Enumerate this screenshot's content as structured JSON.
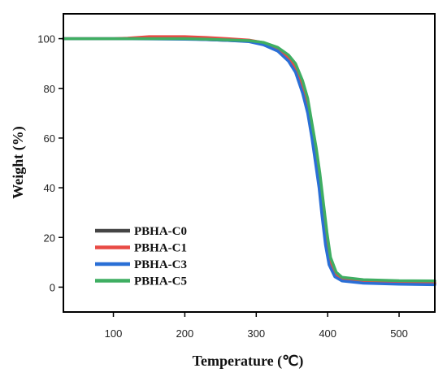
{
  "chart_data": {
    "type": "line",
    "title": "",
    "xlabel": "Temperature (℃)",
    "ylabel": "Weight (%)",
    "xlim": [
      30,
      550
    ],
    "ylim": [
      -10,
      110
    ],
    "x_ticks": [
      100,
      200,
      300,
      400,
      500
    ],
    "y_ticks": [
      0,
      20,
      40,
      60,
      80,
      100
    ],
    "grid": false,
    "legend_position": "bottom-left",
    "series": [
      {
        "name": "PBHA-C0",
        "color": "#444444",
        "points": [
          [
            30,
            100
          ],
          [
            100,
            100
          ],
          [
            150,
            100
          ],
          [
            200,
            100
          ],
          [
            230,
            99.6
          ],
          [
            260,
            99.3
          ],
          [
            290,
            99
          ],
          [
            310,
            97.8
          ],
          [
            330,
            95.5
          ],
          [
            345,
            92
          ],
          [
            355,
            88
          ],
          [
            365,
            80
          ],
          [
            372,
            72
          ],
          [
            378,
            62
          ],
          [
            383,
            52
          ],
          [
            388,
            42
          ],
          [
            393,
            30
          ],
          [
            398,
            18
          ],
          [
            403,
            10
          ],
          [
            410,
            5
          ],
          [
            420,
            3
          ],
          [
            450,
            2.2
          ],
          [
            500,
            1.8
          ],
          [
            550,
            1.6
          ]
        ]
      },
      {
        "name": "PBHA-C1",
        "color": "#e84a45",
        "points": [
          [
            30,
            100
          ],
          [
            100,
            100
          ],
          [
            120,
            100.2
          ],
          [
            150,
            100.8
          ],
          [
            200,
            100.8
          ],
          [
            230,
            100.5
          ],
          [
            260,
            100
          ],
          [
            290,
            99.4
          ],
          [
            310,
            98.4
          ],
          [
            330,
            96
          ],
          [
            345,
            92.5
          ],
          [
            355,
            88.5
          ],
          [
            365,
            81
          ],
          [
            372,
            73
          ],
          [
            378,
            63
          ],
          [
            383,
            53
          ],
          [
            388,
            43
          ],
          [
            393,
            31
          ],
          [
            398,
            19
          ],
          [
            403,
            10.5
          ],
          [
            410,
            5.2
          ],
          [
            420,
            3
          ],
          [
            450,
            2.3
          ],
          [
            500,
            1.9
          ],
          [
            550,
            1.7
          ]
        ]
      },
      {
        "name": "PBHA-C3",
        "color": "#2a6fd6",
        "points": [
          [
            30,
            100
          ],
          [
            100,
            100
          ],
          [
            150,
            99.9
          ],
          [
            200,
            99.8
          ],
          [
            230,
            99.6
          ],
          [
            260,
            99.3
          ],
          [
            290,
            98.8
          ],
          [
            310,
            97.5
          ],
          [
            330,
            95
          ],
          [
            345,
            91
          ],
          [
            355,
            86.5
          ],
          [
            365,
            78
          ],
          [
            372,
            70
          ],
          [
            378,
            60
          ],
          [
            383,
            50
          ],
          [
            388,
            40
          ],
          [
            392,
            29
          ],
          [
            397,
            17
          ],
          [
            402,
            9
          ],
          [
            410,
            4.2
          ],
          [
            420,
            2.5
          ],
          [
            450,
            1.6
          ],
          [
            500,
            1.2
          ],
          [
            550,
            1
          ]
        ]
      },
      {
        "name": "PBHA-C5",
        "color": "#3fae62",
        "points": [
          [
            30,
            100
          ],
          [
            100,
            100
          ],
          [
            150,
            100
          ],
          [
            200,
            100
          ],
          [
            230,
            99.8
          ],
          [
            260,
            99.5
          ],
          [
            290,
            99.2
          ],
          [
            310,
            98.5
          ],
          [
            330,
            96.5
          ],
          [
            345,
            93.5
          ],
          [
            355,
            90
          ],
          [
            365,
            83
          ],
          [
            372,
            76
          ],
          [
            378,
            66
          ],
          [
            384,
            56
          ],
          [
            389,
            46
          ],
          [
            394,
            34
          ],
          [
            399,
            22
          ],
          [
            404,
            12
          ],
          [
            412,
            6
          ],
          [
            420,
            4
          ],
          [
            450,
            3
          ],
          [
            500,
            2.6
          ],
          [
            550,
            2.5
          ]
        ]
      }
    ]
  }
}
